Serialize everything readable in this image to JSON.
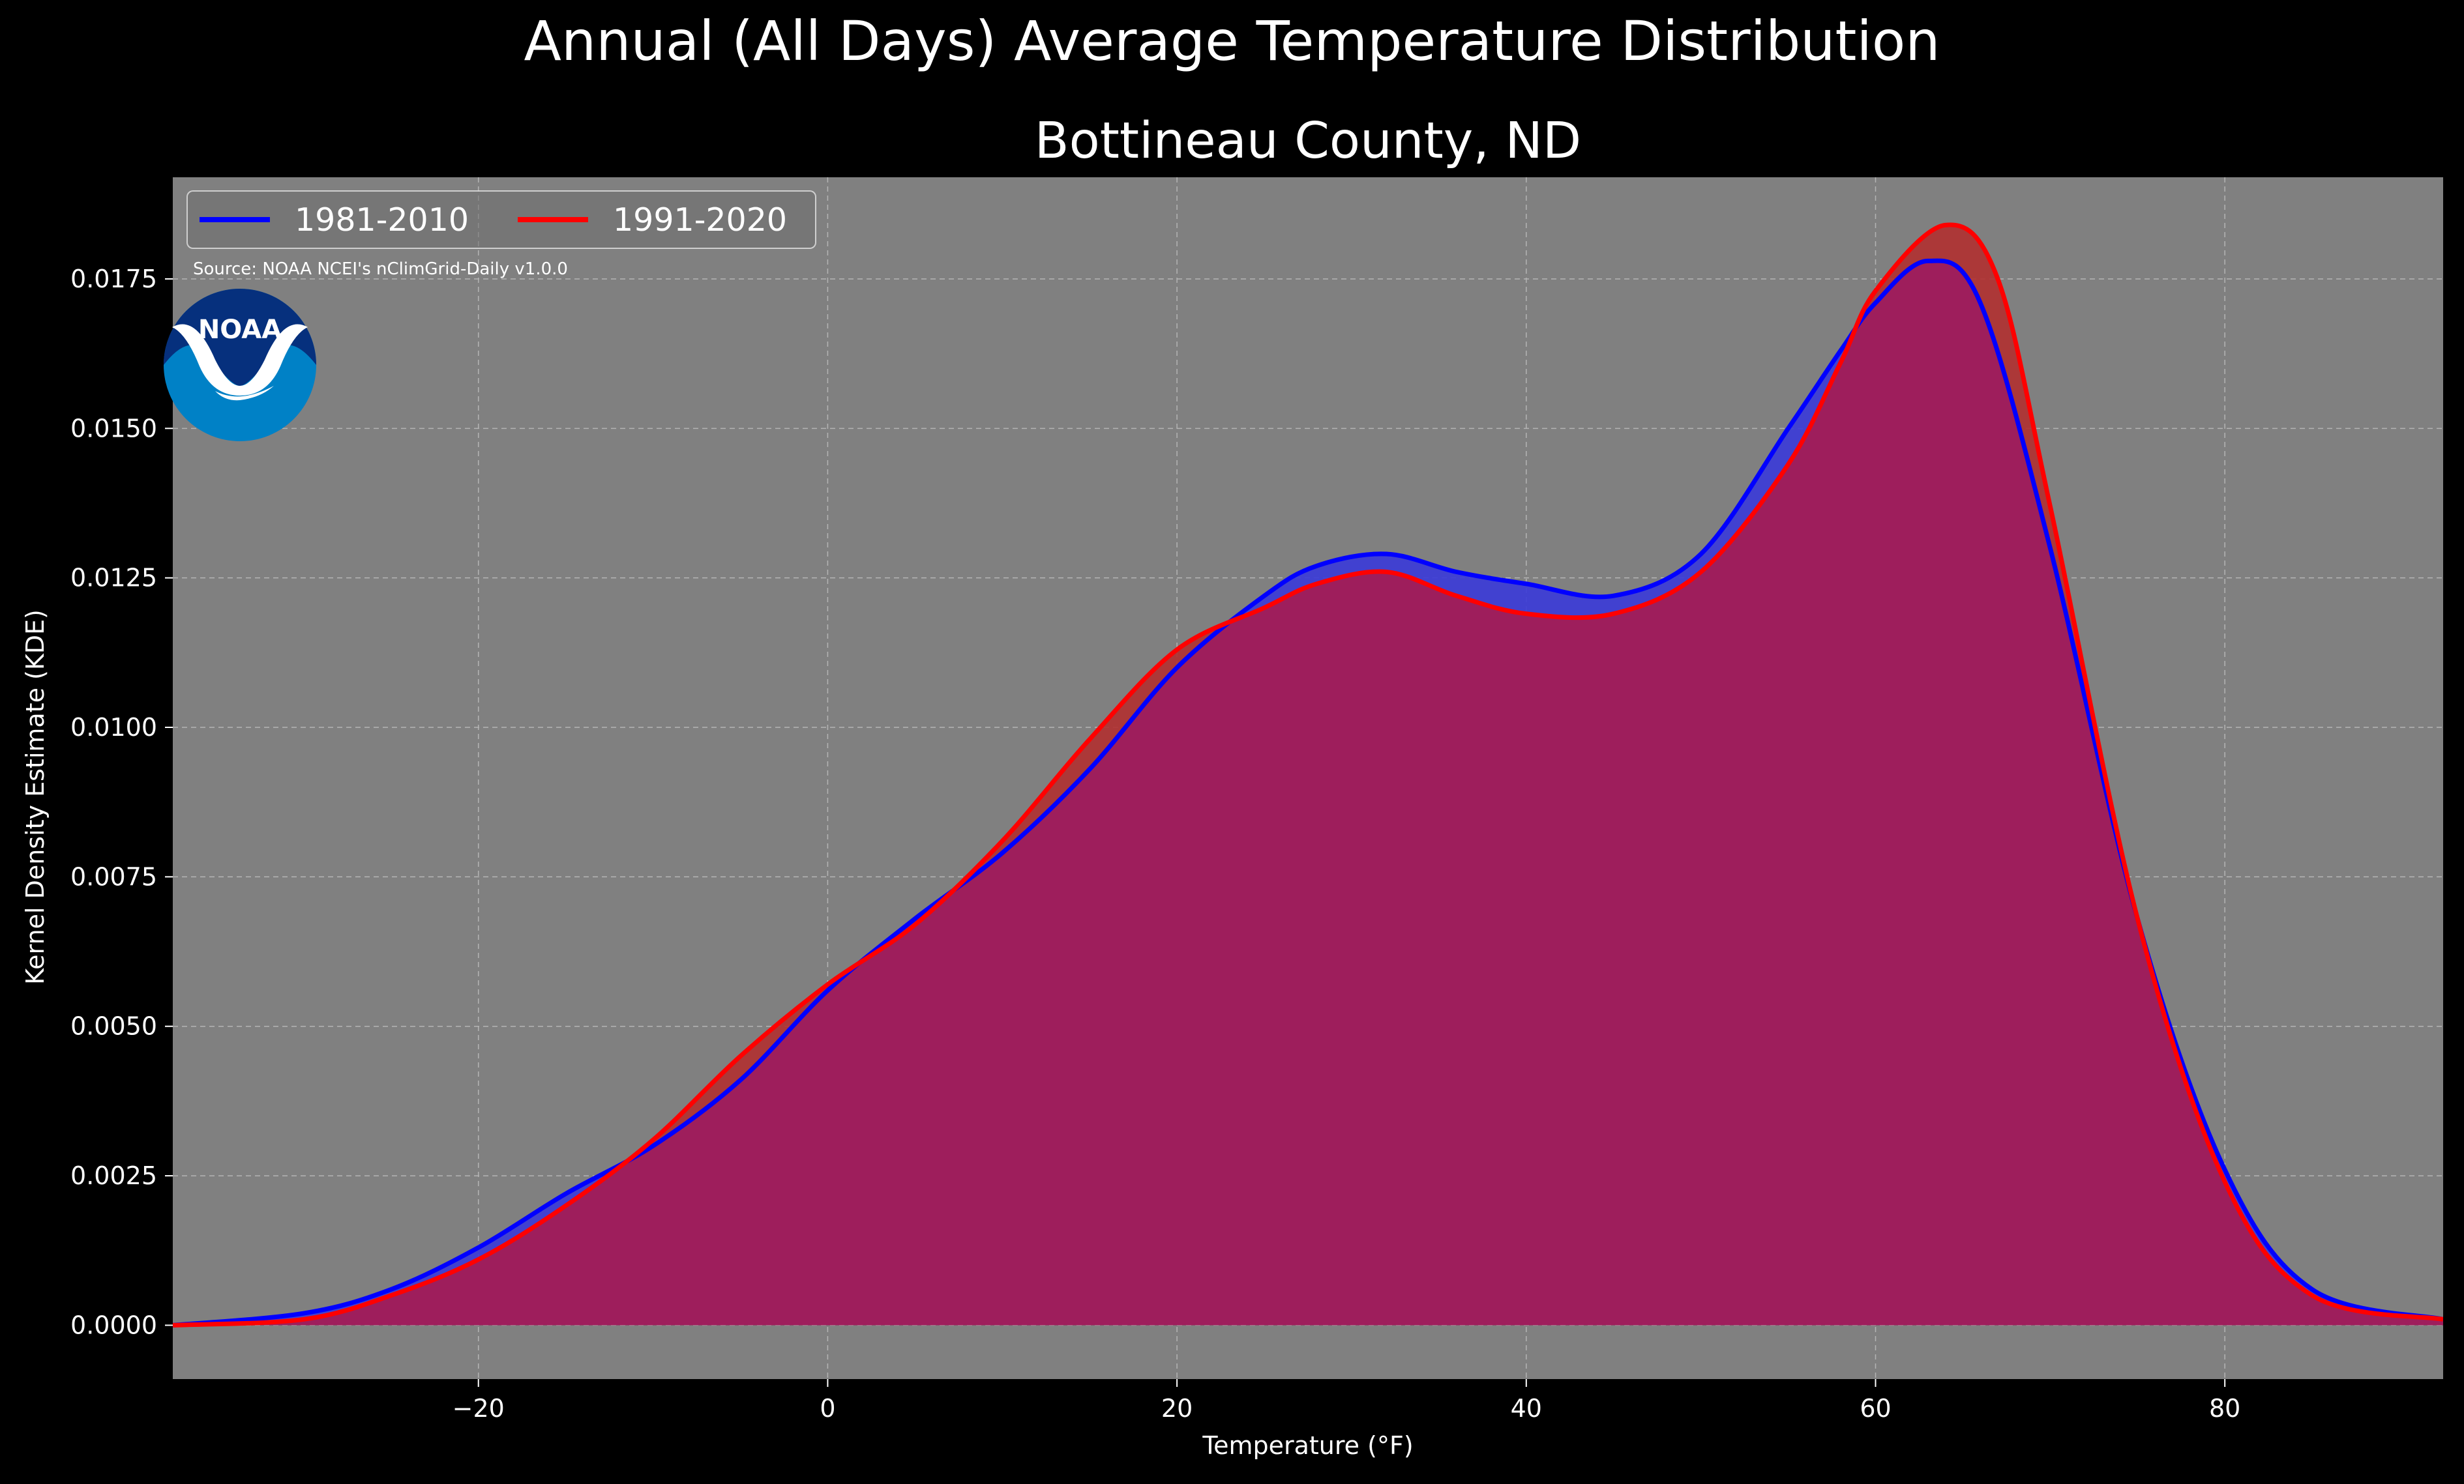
{
  "page": {
    "title": "Annual (All Days) Average Temperature Distribution",
    "subtitle": "Bottineau County, ND",
    "source": "Source: NOAA NCEI's nClimGrid-Daily v1.0.0",
    "logo_text": "NOAA"
  },
  "chart_data": {
    "type": "area",
    "title": "Annual (All Days) Average Temperature Distribution",
    "subtitle": "Bottineau County, ND",
    "xlabel": "Temperature ($^\\circ$F)",
    "xlabel_display": "Temperature (°F)",
    "ylabel": "Kernel Density Estimate (KDE)",
    "xlim": [
      -37.5,
      92.5
    ],
    "ylim": [
      -0.0009,
      0.0192
    ],
    "x_ticks": [
      -20,
      0,
      20,
      40,
      60,
      80
    ],
    "x_tick_labels": [
      "−20",
      "0",
      "20",
      "40",
      "60",
      "80"
    ],
    "y_ticks": [
      0.0,
      0.0025,
      0.005,
      0.0075,
      0.01,
      0.0125,
      0.015,
      0.0175
    ],
    "y_tick_labels": [
      "0.0000",
      "0.0025",
      "0.0050",
      "0.0075",
      "0.0100",
      "0.0125",
      "0.0150",
      "0.0175"
    ],
    "grid": true,
    "legend_position": "top-left",
    "background": "#808080",
    "series": [
      {
        "name": "1981-2010",
        "color": "#0000ff",
        "fill": "#3a3ad8",
        "x": [
          -37.5,
          -30,
          -25,
          -20,
          -15,
          -10,
          -5,
          0,
          5,
          10,
          15,
          20,
          25,
          28,
          32,
          36,
          40,
          45,
          50,
          55,
          58,
          60,
          63,
          66,
          70,
          75,
          80,
          85,
          92.5
        ],
        "values": [
          0.0,
          0.0002,
          0.0006,
          0.0013,
          0.0022,
          0.003,
          0.0041,
          0.0056,
          0.0068,
          0.0079,
          0.0093,
          0.011,
          0.0122,
          0.0127,
          0.0129,
          0.0126,
          0.0124,
          0.0122,
          0.0129,
          0.015,
          0.0163,
          0.0171,
          0.0178,
          0.0171,
          0.013,
          0.0068,
          0.0026,
          0.0006,
          0.0001
        ]
      },
      {
        "name": "1991-2020",
        "color": "#ff0000",
        "fill": "#b03030",
        "x": [
          -37.5,
          -30,
          -25,
          -20,
          -15,
          -10,
          -5,
          0,
          5,
          10,
          15,
          20,
          25,
          28,
          32,
          36,
          40,
          45,
          50,
          55,
          58,
          60,
          64,
          67,
          70,
          75,
          80,
          85,
          92.5
        ],
        "values": [
          0.0,
          0.0001,
          0.0005,
          0.0011,
          0.002,
          0.0031,
          0.0045,
          0.0057,
          0.0067,
          0.0081,
          0.0098,
          0.0113,
          0.012,
          0.0124,
          0.0126,
          0.0122,
          0.0119,
          0.0119,
          0.0126,
          0.0144,
          0.0161,
          0.0173,
          0.0184,
          0.0175,
          0.0137,
          0.0068,
          0.0024,
          0.0005,
          0.0001
        ]
      }
    ],
    "overlap_color": "#9e1e5c"
  }
}
